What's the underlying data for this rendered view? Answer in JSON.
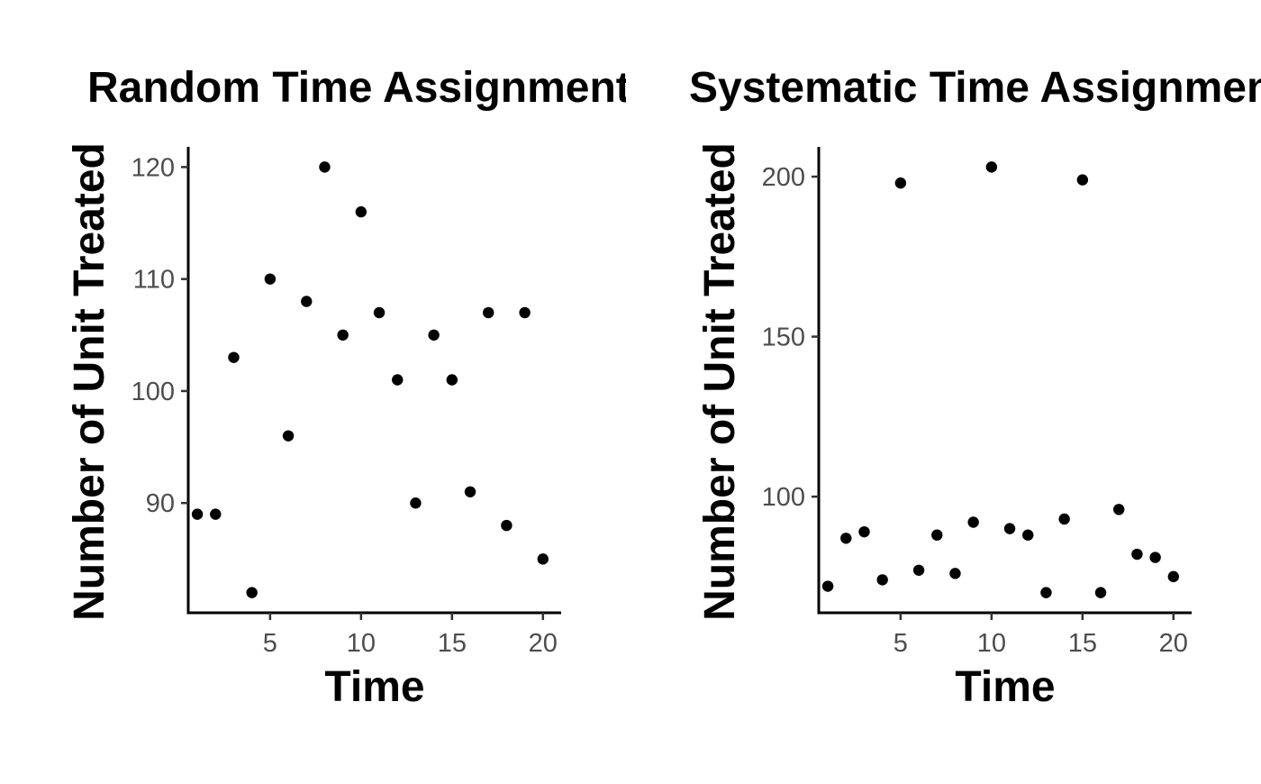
{
  "chart_data": [
    {
      "type": "scatter",
      "title": "Random Time Assignment",
      "xlabel": "Time",
      "ylabel": "Number of Unit Treated",
      "xlim": [
        0.5,
        21
      ],
      "ylim": [
        80.2,
        121.8
      ],
      "xticks": [
        5,
        10,
        15,
        20
      ],
      "yticks": [
        90,
        100,
        110,
        120
      ],
      "grid": false,
      "x": [
        1,
        2,
        3,
        4,
        5,
        6,
        7,
        8,
        9,
        10,
        11,
        12,
        13,
        14,
        15,
        16,
        17,
        18,
        19,
        20
      ],
      "y": [
        89,
        89,
        103,
        82,
        110,
        96,
        108,
        120,
        105,
        116,
        107,
        101,
        90,
        105,
        101,
        91,
        107,
        88,
        107,
        85
      ]
    },
    {
      "type": "scatter",
      "title": "Systematic Time Assignment",
      "xlabel": "Time",
      "ylabel": "Number of Unit Treated",
      "xlim": [
        0.5,
        21
      ],
      "ylim": [
        63.7,
        209.3
      ],
      "xticks": [
        5,
        10,
        15,
        20
      ],
      "yticks": [
        100,
        150,
        200
      ],
      "grid": false,
      "x": [
        1,
        2,
        3,
        4,
        5,
        6,
        7,
        8,
        9,
        10,
        11,
        12,
        13,
        14,
        15,
        16,
        17,
        18,
        19,
        20
      ],
      "y": [
        72,
        87,
        89,
        74,
        198,
        77,
        88,
        76,
        92,
        203,
        90,
        88,
        70,
        93,
        199,
        70,
        96,
        82,
        81,
        75
      ]
    }
  ]
}
